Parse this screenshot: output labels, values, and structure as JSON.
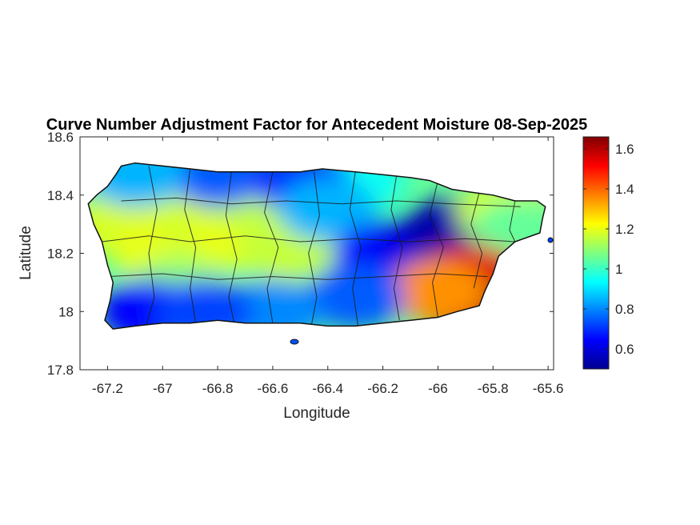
{
  "title": "Curve Number Adjustment Factor for Antecedent Moisture 08-Sep-2025",
  "xlabel": "Longitude",
  "ylabel": "Latitude",
  "x_axis": {
    "range": [
      -67.3,
      -65.58
    ],
    "ticks": [
      -67.2,
      -67,
      -66.8,
      -66.6,
      -66.4,
      -66.2,
      -66,
      -65.8,
      -65.6
    ],
    "tick_labels": [
      "-67.2",
      "-67",
      "-66.8",
      "-66.6",
      "-66.4",
      "-66.2",
      "-66",
      "-65.8",
      "-65.6"
    ]
  },
  "y_axis": {
    "range": [
      17.8,
      18.6
    ],
    "ticks": [
      17.8,
      18,
      18.2,
      18.4,
      18.6
    ],
    "tick_labels": [
      "17.8",
      "18",
      "18.2",
      "18.4",
      "18.6"
    ]
  },
  "colorbar": {
    "colormap": "jet",
    "range": [
      0.5,
      1.66
    ],
    "ticks": [
      0.6,
      0.8,
      1,
      1.2,
      1.4,
      1.6
    ],
    "tick_labels": [
      "0.6",
      "0.8",
      "1",
      "1.2",
      "1.4",
      "1.6"
    ]
  },
  "chart_data": {
    "type": "heatmap",
    "title": "Curve Number Adjustment Factor for Antecedent Moisture 08-Sep-2025",
    "xlabel": "Longitude",
    "ylabel": "Latitude",
    "xlim": [
      -67.3,
      -65.58
    ],
    "ylim": [
      17.8,
      18.6
    ],
    "clim": [
      0.5,
      1.66
    ],
    "region_outline": [
      [
        -67.27,
        18.37
      ],
      [
        -67.24,
        18.4
      ],
      [
        -67.2,
        18.43
      ],
      [
        -67.17,
        18.47
      ],
      [
        -67.15,
        18.5
      ],
      [
        -67.1,
        18.51
      ],
      [
        -67.0,
        18.5
      ],
      [
        -66.9,
        18.49
      ],
      [
        -66.8,
        18.48
      ],
      [
        -66.7,
        18.48
      ],
      [
        -66.6,
        18.48
      ],
      [
        -66.5,
        18.48
      ],
      [
        -66.42,
        18.49
      ],
      [
        -66.3,
        18.48
      ],
      [
        -66.2,
        18.47
      ],
      [
        -66.1,
        18.46
      ],
      [
        -66.03,
        18.45
      ],
      [
        -65.95,
        18.42
      ],
      [
        -65.88,
        18.41
      ],
      [
        -65.8,
        18.4
      ],
      [
        -65.72,
        18.38
      ],
      [
        -65.64,
        18.38
      ],
      [
        -65.61,
        18.36
      ],
      [
        -65.62,
        18.32
      ],
      [
        -65.63,
        18.27
      ],
      [
        -65.72,
        18.24
      ],
      [
        -65.78,
        18.19
      ],
      [
        -65.8,
        18.13
      ],
      [
        -65.83,
        18.07
      ],
      [
        -65.85,
        18.02
      ],
      [
        -65.93,
        18.0
      ],
      [
        -66.0,
        17.98
      ],
      [
        -66.1,
        17.97
      ],
      [
        -66.2,
        17.96
      ],
      [
        -66.3,
        17.95
      ],
      [
        -66.4,
        17.95
      ],
      [
        -66.5,
        17.96
      ],
      [
        -66.6,
        17.96
      ],
      [
        -66.7,
        17.96
      ],
      [
        -66.8,
        17.97
      ],
      [
        -66.9,
        17.96
      ],
      [
        -67.0,
        17.96
      ],
      [
        -67.1,
        17.95
      ],
      [
        -67.18,
        17.94
      ],
      [
        -67.21,
        17.97
      ],
      [
        -67.19,
        18.04
      ],
      [
        -67.18,
        18.1
      ],
      [
        -67.2,
        18.16
      ],
      [
        -67.22,
        18.24
      ],
      [
        -67.25,
        18.3
      ],
      [
        -67.27,
        18.37
      ]
    ],
    "value_field": [
      {
        "lon": -67.15,
        "lat": 18.3,
        "value": 1.18
      },
      {
        "lon": -67.0,
        "lat": 18.2,
        "value": 1.2
      },
      {
        "lon": -66.85,
        "lat": 18.3,
        "value": 1.18
      },
      {
        "lon": -66.7,
        "lat": 18.25,
        "value": 1.2
      },
      {
        "lon": -66.55,
        "lat": 18.22,
        "value": 1.16
      },
      {
        "lon": -66.95,
        "lat": 18.08,
        "value": 1.1
      },
      {
        "lon": -66.7,
        "lat": 18.4,
        "value": 1.15
      },
      {
        "lon": -66.8,
        "lat": 18.47,
        "value": 0.75
      },
      {
        "lon": -67.1,
        "lat": 18.47,
        "value": 0.85
      },
      {
        "lon": -66.3,
        "lat": 18.45,
        "value": 0.95
      },
      {
        "lon": -66.5,
        "lat": 18.45,
        "value": 0.7
      },
      {
        "lon": -66.4,
        "lat": 18.35,
        "value": 0.85
      },
      {
        "lon": -66.2,
        "lat": 18.2,
        "value": 0.65
      },
      {
        "lon": -66.05,
        "lat": 18.22,
        "value": 0.62
      },
      {
        "lon": -65.95,
        "lat": 18.28,
        "value": 0.55
      },
      {
        "lon": -65.75,
        "lat": 18.34,
        "value": 1.18
      },
      {
        "lon": -65.7,
        "lat": 18.28,
        "value": 1.05
      },
      {
        "lon": -65.93,
        "lat": 18.08,
        "value": 1.45
      },
      {
        "lon": -65.87,
        "lat": 18.12,
        "value": 1.55
      },
      {
        "lon": -65.88,
        "lat": 18.02,
        "value": 1.6
      },
      {
        "lon": -66.0,
        "lat": 18.07,
        "value": 1.35
      },
      {
        "lon": -66.3,
        "lat": 18.05,
        "value": 0.75
      },
      {
        "lon": -66.6,
        "lat": 18.0,
        "value": 0.8
      },
      {
        "lon": -67.05,
        "lat": 18.0,
        "value": 0.65
      },
      {
        "lon": -66.85,
        "lat": 18.0,
        "value": 0.72
      }
    ]
  }
}
